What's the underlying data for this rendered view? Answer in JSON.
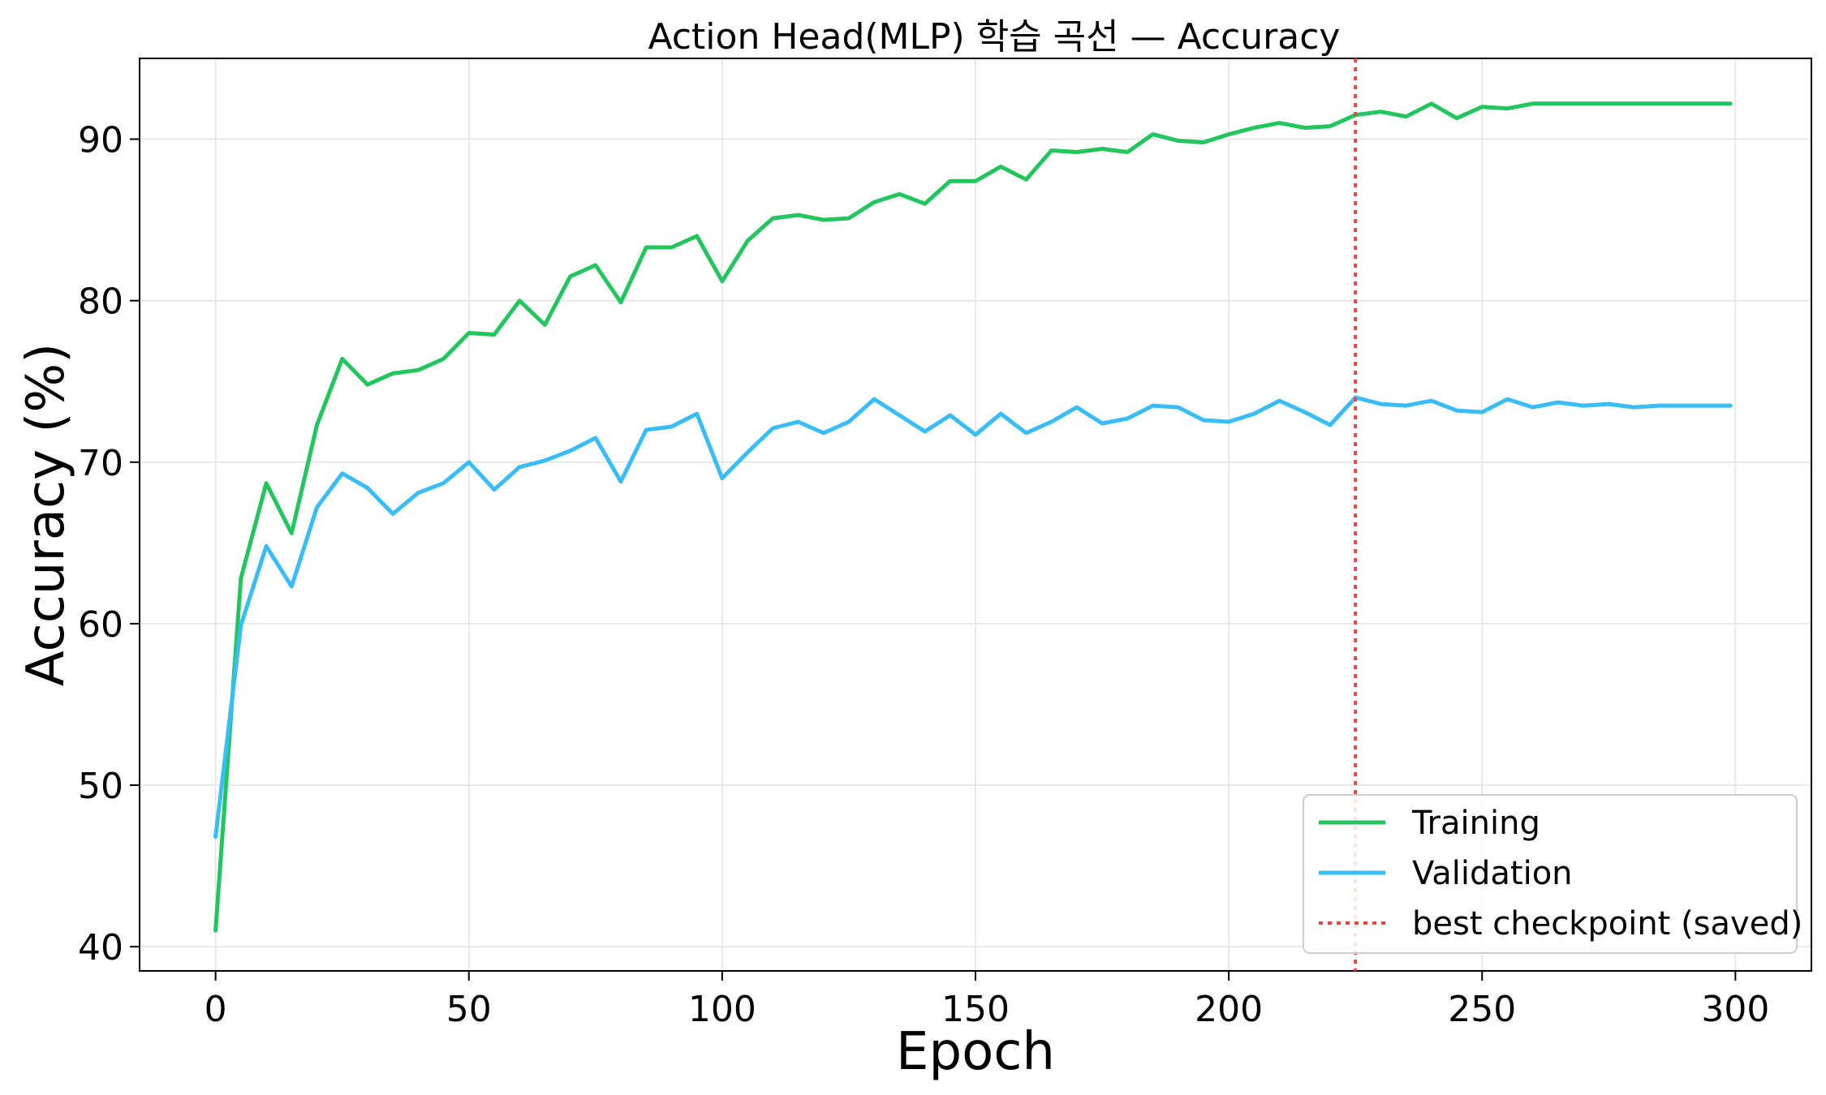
{
  "chart_data": {
    "type": "line",
    "title": "Action Head(MLP) 학습 곡선 — Accuracy",
    "xlabel": "Epoch",
    "ylabel": "Accuracy (%)",
    "xlim": [
      -15,
      315
    ],
    "ylim": [
      38.5,
      95
    ],
    "xticks": [
      0,
      50,
      100,
      150,
      200,
      250,
      300
    ],
    "yticks": [
      40,
      50,
      60,
      70,
      80,
      90
    ],
    "grid": true,
    "legend_position": "lower-right",
    "x": [
      0,
      5,
      10,
      15,
      20,
      25,
      30,
      35,
      40,
      45,
      50,
      55,
      60,
      65,
      70,
      75,
      80,
      85,
      90,
      95,
      100,
      105,
      110,
      115,
      120,
      125,
      130,
      135,
      140,
      145,
      150,
      155,
      160,
      165,
      170,
      175,
      180,
      185,
      190,
      195,
      200,
      205,
      210,
      215,
      220,
      225,
      230,
      235,
      240,
      245,
      250,
      255,
      260,
      265,
      270,
      275,
      280,
      285,
      290,
      295,
      299
    ],
    "series": [
      {
        "name": "Training",
        "color": "#22c55e",
        "values": [
          41.0,
          62.8,
          68.7,
          65.6,
          72.3,
          76.4,
          74.8,
          75.5,
          75.7,
          76.4,
          78.0,
          77.9,
          80.0,
          78.5,
          81.5,
          82.2,
          79.9,
          83.3,
          83.3,
          84.0,
          81.2,
          83.7,
          85.1,
          85.3,
          85.0,
          85.1,
          86.1,
          86.6,
          86.0,
          87.4,
          87.4,
          88.3,
          87.5,
          89.3,
          89.2,
          89.4,
          89.2,
          90.3,
          89.9,
          89.8,
          90.3,
          90.7,
          91.0,
          90.7,
          90.8,
          91.5,
          91.7,
          91.4,
          92.2,
          91.3,
          92.0,
          91.9,
          92.2,
          92.2,
          92.2,
          92.2,
          92.2,
          92.2,
          92.2,
          92.2,
          92.2
        ]
      },
      {
        "name": "Validation",
        "color": "#38bdf8",
        "values": [
          46.8,
          59.9,
          64.8,
          62.3,
          67.2,
          69.3,
          68.4,
          66.8,
          68.1,
          68.7,
          70.0,
          68.3,
          69.7,
          70.1,
          70.7,
          71.5,
          68.8,
          72.0,
          72.2,
          73.0,
          69.0,
          70.6,
          72.1,
          72.5,
          71.8,
          72.5,
          73.9,
          72.9,
          71.9,
          72.9,
          71.7,
          73.0,
          71.8,
          72.5,
          73.4,
          72.4,
          72.7,
          73.5,
          73.4,
          72.6,
          72.5,
          73.0,
          73.8,
          73.1,
          72.3,
          74.0,
          73.6,
          73.5,
          73.8,
          73.2,
          73.1,
          73.9,
          73.4,
          73.7,
          73.5,
          73.6,
          73.4,
          73.5,
          73.5,
          73.5,
          73.5
        ]
      }
    ],
    "vline": {
      "name": "best checkpoint (saved)",
      "x": 225,
      "color": "#ef4444"
    }
  }
}
